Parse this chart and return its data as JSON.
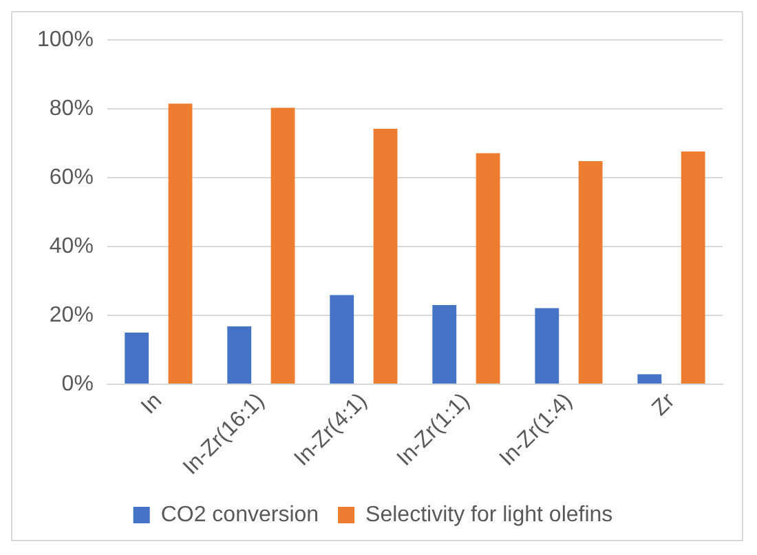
{
  "chart_data": {
    "type": "bar",
    "categories": [
      "In",
      "In-Zr(16:1)",
      "In-Zr(4:1)",
      "In-Zr(1:1)",
      "In-Zr(1:4)",
      "Zr"
    ],
    "series": [
      {
        "name": "CO2 conversion",
        "color": "#4472c4",
        "values": [
          15.0,
          16.8,
          25.9,
          23.0,
          22.1,
          2.9
        ]
      },
      {
        "name": "Selectivity for light olefins",
        "color": "#ed7d31",
        "values": [
          81.5,
          80.3,
          74.2,
          67.1,
          64.8,
          67.6
        ]
      }
    ],
    "ylim": [
      0,
      100
    ],
    "yticks": [
      {
        "value": 0,
        "label": "0%"
      },
      {
        "value": 20,
        "label": "20%"
      },
      {
        "value": 40,
        "label": "40%"
      },
      {
        "value": 60,
        "label": "60%"
      },
      {
        "value": 80,
        "label": "80%"
      },
      {
        "value": 100,
        "label": "100%"
      }
    ],
    "grid": "y",
    "legend": "bottom"
  }
}
